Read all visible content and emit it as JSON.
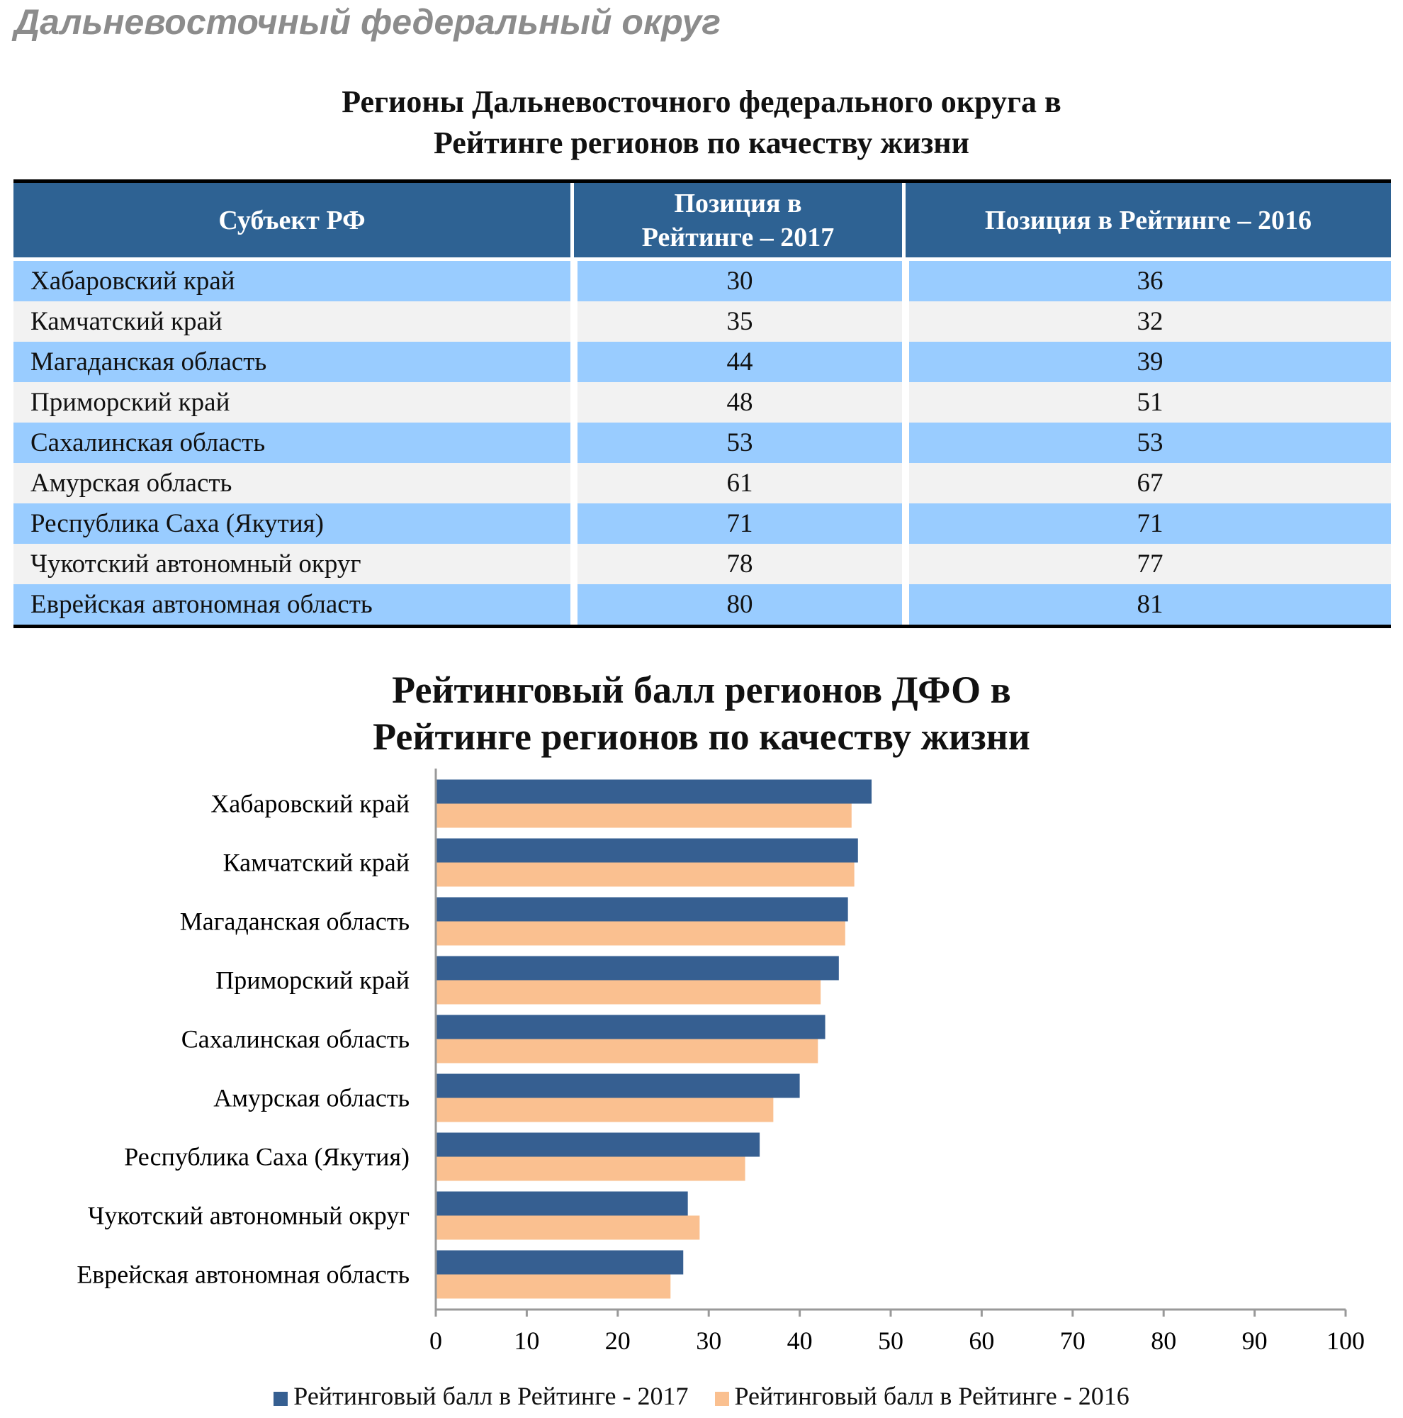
{
  "page_title": "Дальневосточный федеральный округ",
  "table": {
    "title_line1": "Регионы Дальневосточного федерального округа в",
    "title_line2": "Рейтинге регионов по качеству жизни",
    "headers": [
      "Субъект РФ",
      "Позиция в Рейтинге – 2017",
      "Позиция в Рейтинге – 2016"
    ],
    "rows": [
      [
        "Хабаровский край",
        "30",
        "36"
      ],
      [
        "Камчатский край",
        "35",
        "32"
      ],
      [
        "Магаданская область",
        "44",
        "39"
      ],
      [
        "Приморский край",
        "48",
        "51"
      ],
      [
        "Сахалинская область",
        "53",
        "53"
      ],
      [
        "Амурская область",
        "61",
        "67"
      ],
      [
        "Республика Саха (Якутия)",
        "71",
        "71"
      ],
      [
        "Чукотский автономный округ",
        "78",
        "77"
      ],
      [
        "Еврейская автономная область",
        "80",
        "81"
      ]
    ],
    "colors": {
      "header": "#2E6293",
      "row_odd": "#99CCFF",
      "row_even": "#F2F2F2"
    }
  },
  "chart_data": {
    "type": "bar",
    "orientation": "horizontal",
    "title_line1": "Рейтинговый балл регионов ДФО в",
    "title_line2": "Рейтинге регионов по качеству жизни",
    "categories": [
      "Хабаровский край",
      "Камчатский край",
      "Магаданская область",
      "Приморский край",
      "Сахалинская область",
      "Амурская область",
      "Республика Саха (Якутия)",
      "Чукотский автономный округ",
      "Еврейская автономная область"
    ],
    "series": [
      {
        "name": "Рейтинговый балл в Рейтинге - 2017",
        "color": "#365F91",
        "values": [
          47.9,
          46.4,
          45.3,
          44.3,
          42.8,
          40.0,
          35.6,
          27.7,
          27.2
        ]
      },
      {
        "name": "Рейтинговый балл в Рейтинге - 2016",
        "color": "#FAC090",
        "values": [
          45.7,
          46.0,
          45.0,
          42.3,
          42.0,
          37.1,
          34.0,
          29.0,
          25.8
        ]
      }
    ],
    "xlim": [
      0,
      100
    ],
    "xticks": [
      "0",
      "10",
      "20",
      "30",
      "40",
      "50",
      "60",
      "70",
      "80",
      "90",
      "100"
    ],
    "grid": false,
    "legend": "bottom"
  }
}
